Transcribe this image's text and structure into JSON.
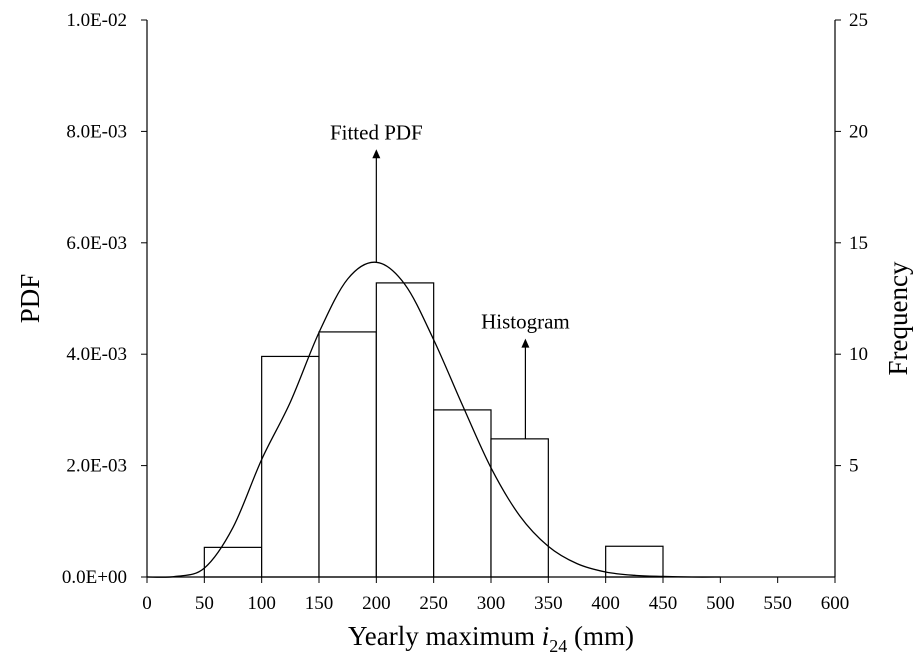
{
  "chart_data": {
    "type": "bar",
    "title": "",
    "xlabel": {
      "prefix": "Yearly maximum ",
      "var": "i",
      "sub": "24",
      "suffix": " (mm)"
    },
    "ylabel_left": "PDF",
    "ylabel_right": "Frequency",
    "xlim": [
      0,
      600
    ],
    "ylim_left": [
      0,
      0.01
    ],
    "ylim_right": [
      0,
      25
    ],
    "x_ticks": [
      "0",
      "50",
      "100",
      "150",
      "200",
      "250",
      "300",
      "350",
      "400",
      "450",
      "500",
      "550",
      "600"
    ],
    "y_left_ticks": [
      "0.0E+00",
      "2.0E-03",
      "4.0E-03",
      "6.0E-03",
      "8.0E-03",
      "1.0E-02"
    ],
    "y_right_ticks": [
      "5",
      "10",
      "15",
      "20",
      "25"
    ],
    "grid": false,
    "series": [
      {
        "name": "Histogram",
        "kind": "histogram",
        "axis": "right",
        "bins": [
          {
            "from": 50,
            "to": 100,
            "frequency": 1.33
          },
          {
            "from": 100,
            "to": 150,
            "frequency": 9.9
          },
          {
            "from": 150,
            "to": 200,
            "frequency": 11.0
          },
          {
            "from": 200,
            "to": 250,
            "frequency": 13.2
          },
          {
            "from": 250,
            "to": 300,
            "frequency": 7.5
          },
          {
            "from": 300,
            "to": 350,
            "frequency": 6.2
          },
          {
            "from": 400,
            "to": 450,
            "frequency": 1.38
          }
        ]
      },
      {
        "name": "Fitted PDF",
        "kind": "line",
        "axis": "left",
        "x": [
          0,
          25,
          50,
          75,
          100,
          125,
          150,
          175,
          200,
          225,
          250,
          275,
          300,
          325,
          350,
          375,
          400,
          425,
          450,
          475,
          500
        ],
        "y": [
          0.0,
          1e-05,
          0.00016,
          0.00089,
          0.00211,
          0.00314,
          0.00439,
          0.00535,
          0.00565,
          0.00525,
          0.00426,
          0.00309,
          0.00196,
          0.0011,
          0.00055,
          0.00024,
          9e-05,
          3e-05,
          1e-05,
          0.0,
          0.0
        ]
      }
    ],
    "annotations": [
      {
        "text": "Fitted PDF",
        "x": 200,
        "y_left": 0.0075,
        "points_to_series": "Fitted PDF"
      },
      {
        "text": "Histogram",
        "x": 330,
        "y_left": 0.0041,
        "points_to_series": "Histogram"
      }
    ]
  }
}
